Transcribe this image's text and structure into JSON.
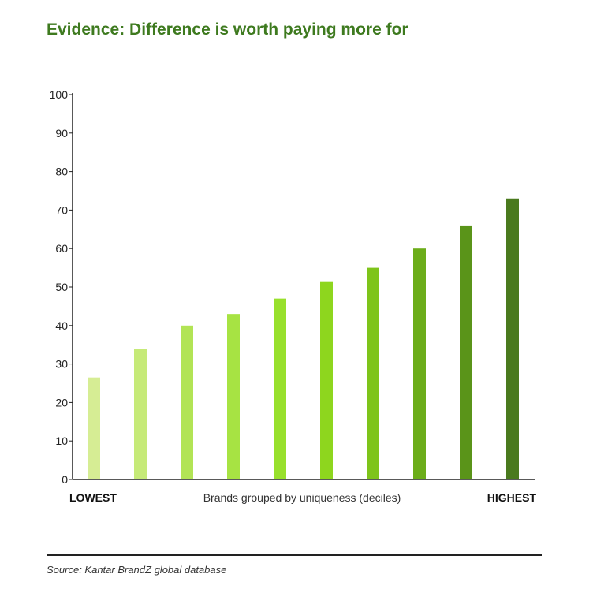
{
  "title": "Evidence: Difference is worth paying more for",
  "source": "Source: Kantar BrandZ global database",
  "chart_data": {
    "type": "bar",
    "title": "Evidence: Difference is worth paying more for",
    "xlabel": "Brands grouped by uniqueness (deciles)",
    "x_end_labels": {
      "left": "LOWEST",
      "right": "HIGHEST"
    },
    "ylabel": "",
    "ylim": [
      0,
      100
    ],
    "yticks": [
      0,
      10,
      20,
      30,
      40,
      50,
      60,
      70,
      80,
      90,
      100
    ],
    "categories": [
      "1",
      "2",
      "3",
      "4",
      "5",
      "6",
      "7",
      "8",
      "9",
      "10"
    ],
    "values": [
      26.5,
      34,
      40,
      43,
      47,
      51.5,
      55,
      60,
      66,
      73
    ],
    "colors": [
      "#d6ed94",
      "#c6ea78",
      "#b2e455",
      "#a7e343",
      "#98e02c",
      "#8ed61e",
      "#7ec41a",
      "#6cad1a",
      "#5a9419",
      "#4a7a1e"
    ],
    "grid": false,
    "legend": "none"
  }
}
